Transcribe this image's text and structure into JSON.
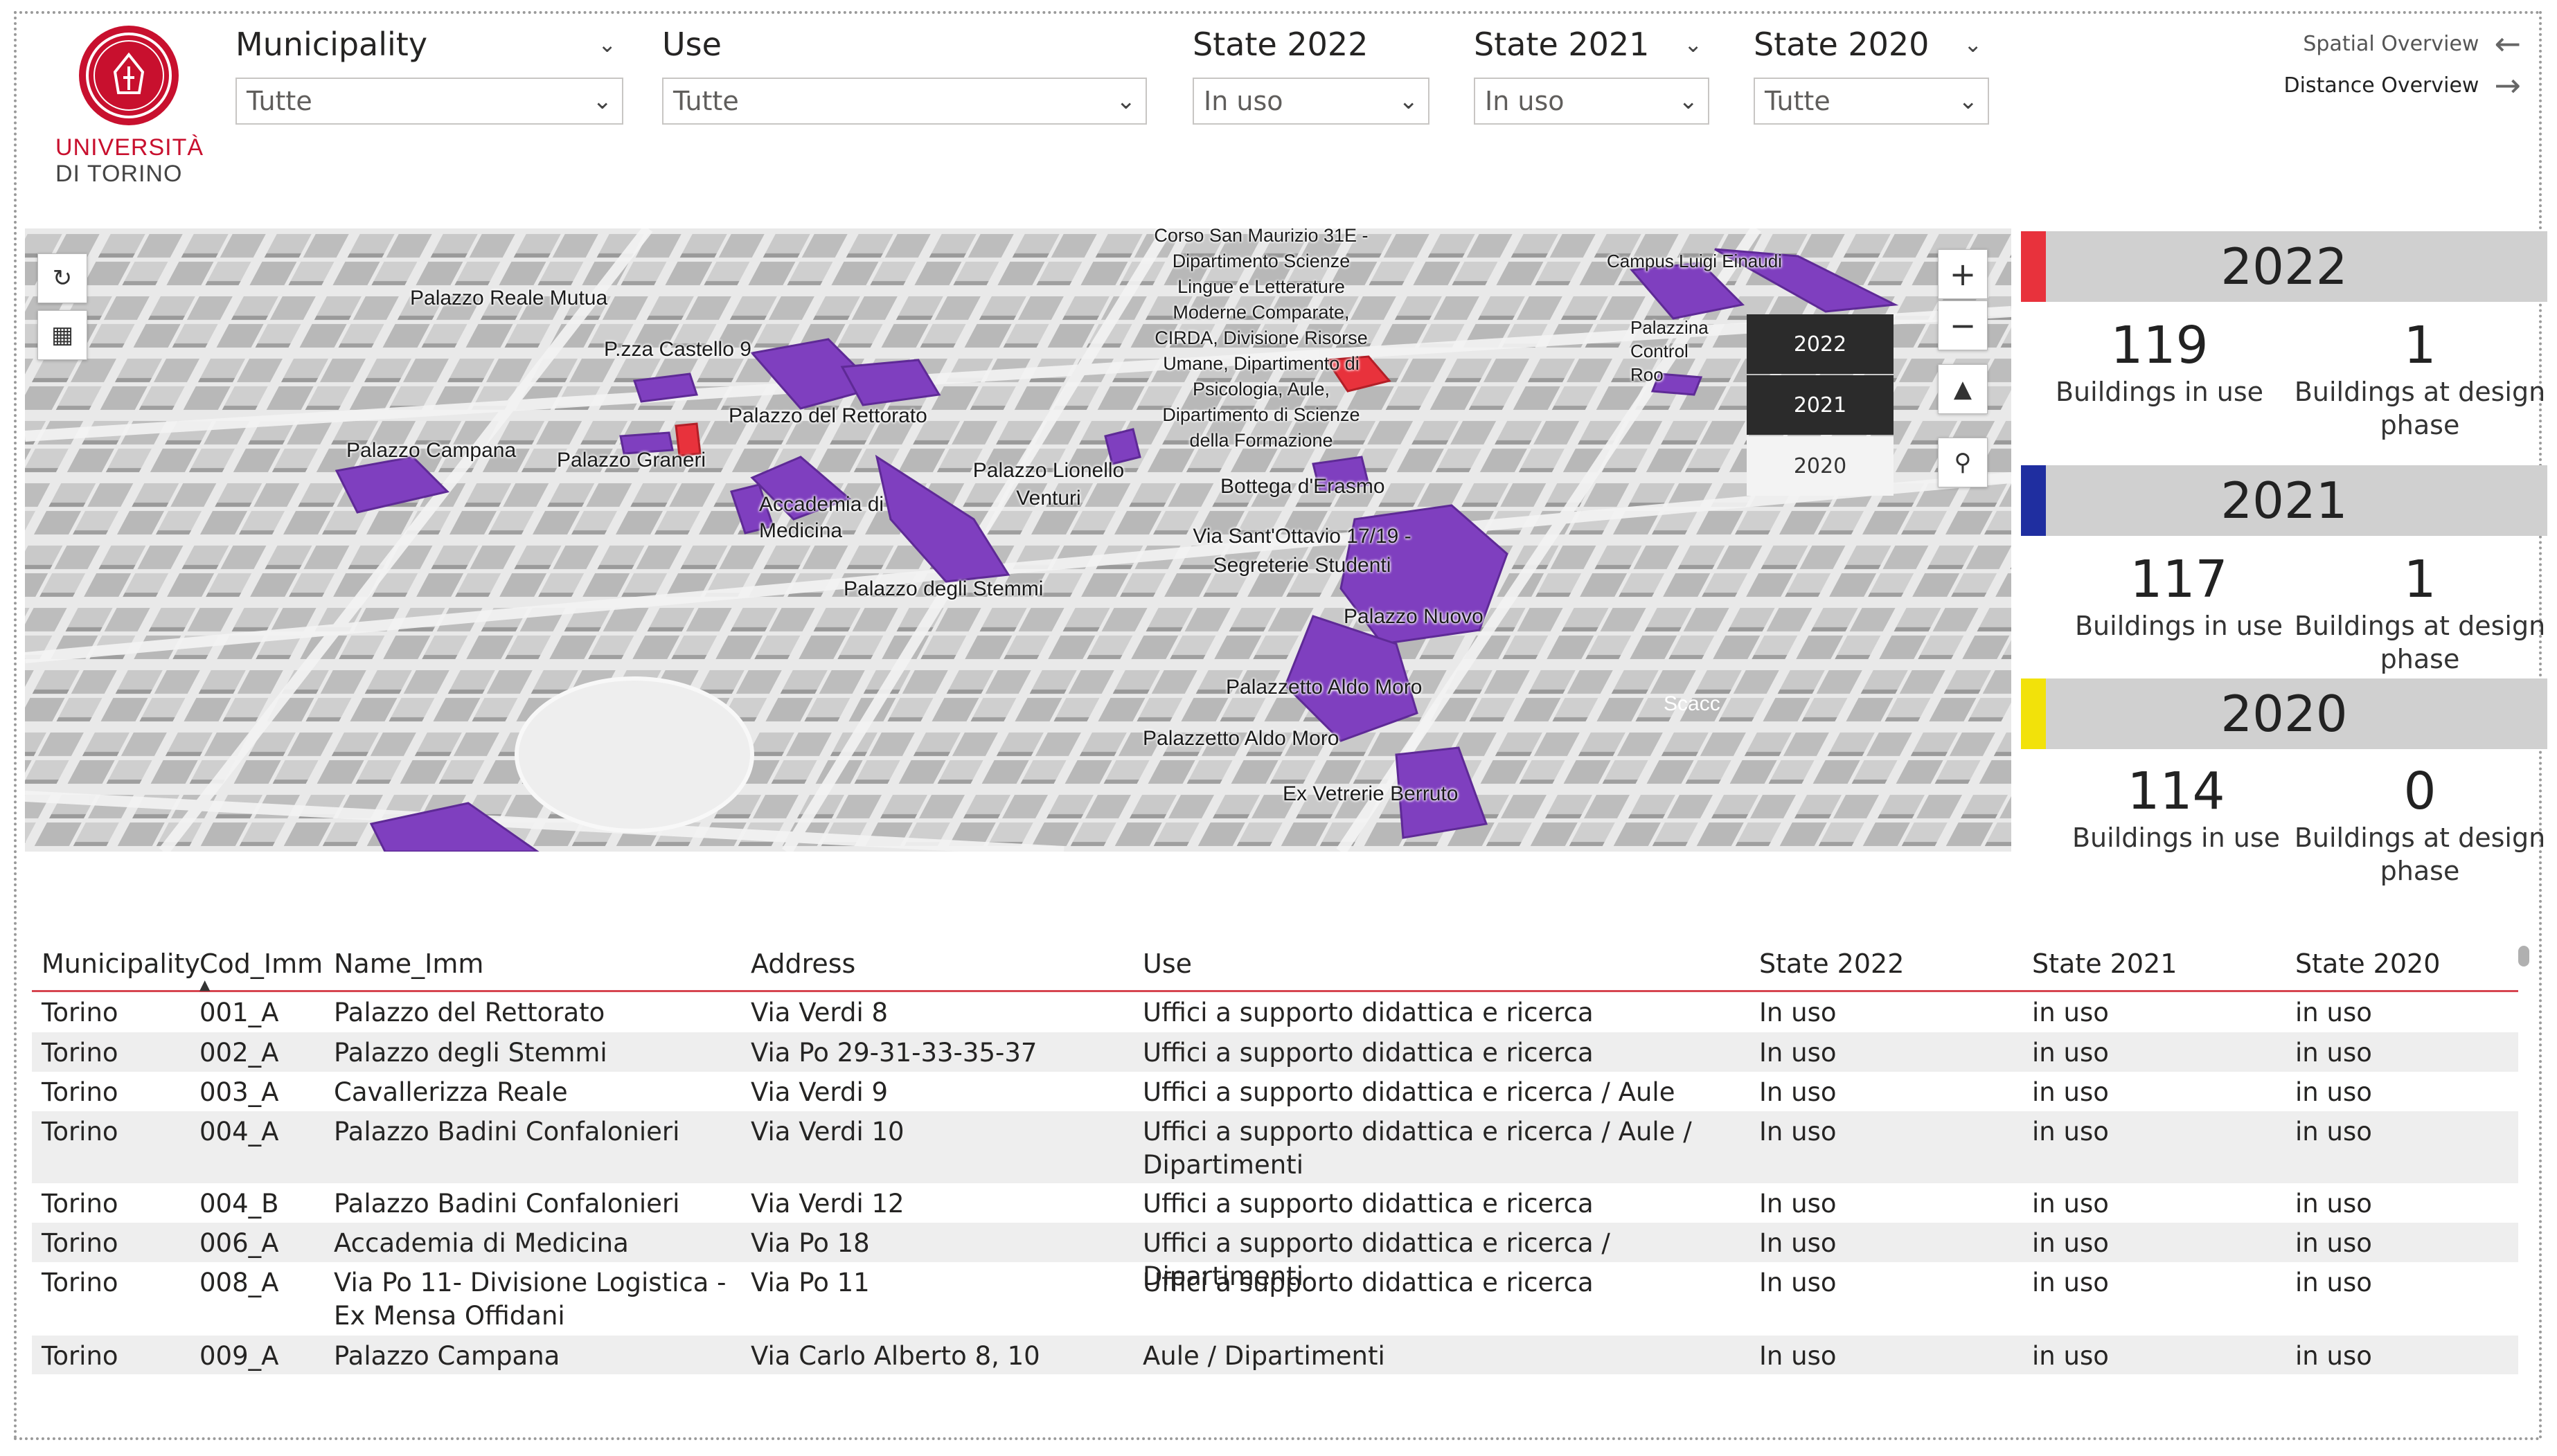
{
  "logo": {
    "line1": "UNIVERSITÀ",
    "line2": "DI TORINO"
  },
  "slicers": [
    {
      "title": "Municipality",
      "value": "Tutte"
    },
    {
      "title": "Use",
      "value": "Tutte"
    },
    {
      "title": "State 2022",
      "value": "In uso"
    },
    {
      "title": "State 2021",
      "value": "In uso"
    },
    {
      "title": "State 2020",
      "value": "Tutte"
    }
  ],
  "nav": {
    "spatial": "Spatial Overview",
    "distance": "Distance Overview"
  },
  "map": {
    "year_buttons": [
      "2022",
      "2021",
      "2020"
    ],
    "labels": [
      "Palazzo Reale Mutua",
      "P.zza Castello 9",
      "Palazzo del Rettorato",
      "Palazzo Campana",
      "Palazzo Graneri",
      "Accademia di Medicina",
      "Palazzo degli Stemmi",
      "Palazzo Lionello Venturi",
      "Bottega d'Erasmo",
      "Via Sant'Ottavio 17/19 - Segreterie Studenti",
      "Palazzo Nuovo",
      "Palazzetto Aldo Moro",
      "Palazzetto Aldo Moro",
      "Ex Vetrerie Berruto",
      "Campus Luigi Einaudi",
      "Palazzina Control Roo",
      "Scacc",
      "Corso San Maurizio 31E - Dipartimento Scienze Lingue e Letterature Moderne Comparate, CIRDA, Divisione Risorse Umane, Dipartimento di Psicologia, Aule, Dipartimento di Scienze della Formazione"
    ]
  },
  "kpis": [
    {
      "year": "2022",
      "color": "#e8323c",
      "in_use": "119",
      "in_use_label": "Buildings in use",
      "design": "1",
      "design_label": "Buildings at design phase"
    },
    {
      "year": "2021",
      "color": "#1f2ea0",
      "in_use": "117",
      "in_use_label": "Buildings in use",
      "design": "1",
      "design_label": "Buildings at design phase"
    },
    {
      "year": "2020",
      "color": "#f2e20a",
      "in_use": "114",
      "in_use_label": "Buildings in use",
      "design": "0",
      "design_label": "Buildings at design phase"
    }
  ],
  "table": {
    "columns": [
      "Municipality",
      "Cod_Imm",
      "Name_Imm",
      "Address",
      "Use",
      "State 2022",
      "State 2021",
      "State 2020"
    ],
    "rows": [
      [
        "Torino",
        "001_A",
        "Palazzo del Rettorato",
        "Via Verdi 8",
        "Uffici a supporto didattica e ricerca",
        "In uso",
        "in uso",
        "in uso"
      ],
      [
        "Torino",
        "002_A",
        "Palazzo degli Stemmi",
        "Via Po 29-31-33-35-37",
        "Uffici a supporto didattica e ricerca",
        "In uso",
        "in uso",
        "in uso"
      ],
      [
        "Torino",
        "003_A",
        "Cavallerizza Reale",
        "Via Verdi 9",
        "Uffici a supporto didattica e ricerca / Aule",
        "In uso",
        "in uso",
        "in uso"
      ],
      [
        "Torino",
        "004_A",
        "Palazzo Badini Confalonieri",
        "Via Verdi 10",
        "Uffici a supporto didattica e ricerca / Aule / Dipartimenti",
        "In uso",
        "in uso",
        "in uso"
      ],
      [
        "Torino",
        "004_B",
        "Palazzo Badini Confalonieri",
        "Via Verdi 12",
        "Uffici a supporto didattica e ricerca",
        "In uso",
        "in uso",
        "in uso"
      ],
      [
        "Torino",
        "006_A",
        "Accademia di Medicina",
        "Via Po 18",
        "Uffici a supporto didattica e ricerca / Dipartimenti",
        "In uso",
        "in uso",
        "in uso"
      ],
      [
        "Torino",
        "008_A",
        "Via Po 11- Divisione Logistica - Ex Mensa Offidani",
        "Via Po 11",
        "Uffici a supporto didattica e ricerca",
        "In uso",
        "in uso",
        "in uso"
      ],
      [
        "Torino",
        "009_A",
        "Palazzo Campana",
        "Via Carlo Alberto 8, 10",
        "Aule / Dipartimenti",
        "In uso",
        "in uso",
        "in uso"
      ]
    ]
  }
}
